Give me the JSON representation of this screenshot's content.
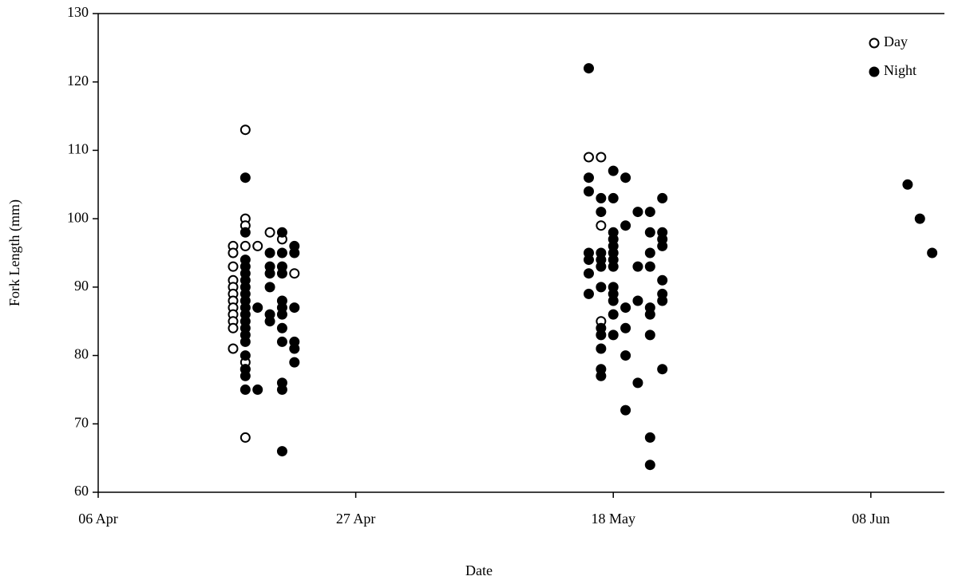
{
  "chart_data": {
    "type": "scatter",
    "x_label": "Date",
    "y_label": "Fork Length (mm)",
    "xlim": [
      "06 Apr",
      "14 Jun"
    ],
    "xticks": [
      "06 Apr",
      "27 Apr",
      "18 May",
      "08 Jun"
    ],
    "ylim": [
      60,
      130
    ],
    "yticks": [
      60,
      70,
      80,
      90,
      100,
      110,
      120,
      130
    ],
    "legend": "top-right",
    "grid": false,
    "series": [
      {
        "name": "Day",
        "color": "#000000",
        "marker": "open",
        "x": [
          "17 Apr",
          "17 Apr",
          "17 Apr",
          "17 Apr",
          "17 Apr",
          "17 Apr",
          "17 Apr",
          "17 Apr",
          "17 Apr",
          "17 Apr",
          "17 Apr",
          "17 Apr",
          "18 Apr",
          "18 Apr",
          "18 Apr",
          "18 Apr",
          "18 Apr",
          "18 Apr",
          "18 Apr",
          "19 Apr",
          "20 Apr",
          "21 Apr",
          "22 Apr",
          "16 May",
          "17 May",
          "17 May",
          "17 May"
        ],
        "y": [
          96,
          95,
          93,
          91,
          90,
          89,
          88,
          87,
          86,
          85,
          84,
          81,
          113,
          100,
          99,
          96,
          79,
          78,
          68,
          96,
          98,
          97,
          92,
          109,
          109,
          99,
          85
        ]
      },
      {
        "name": "Night",
        "color": "#000000",
        "marker": "filled",
        "x": [
          "18 Apr",
          "18 Apr",
          "18 Apr",
          "18 Apr",
          "18 Apr",
          "18 Apr",
          "18 Apr",
          "18 Apr",
          "18 Apr",
          "18 Apr",
          "18 Apr",
          "18 Apr",
          "18 Apr",
          "18 Apr",
          "18 Apr",
          "18 Apr",
          "18 Apr",
          "18 Apr",
          "18 Apr",
          "19 Apr",
          "19 Apr",
          "20 Apr",
          "20 Apr",
          "20 Apr",
          "20 Apr",
          "20 Apr",
          "20 Apr",
          "21 Apr",
          "21 Apr",
          "21 Apr",
          "21 Apr",
          "21 Apr",
          "21 Apr",
          "21 Apr",
          "21 Apr",
          "21 Apr",
          "21 Apr",
          "21 Apr",
          "21 Apr",
          "22 Apr",
          "22 Apr",
          "22 Apr",
          "22 Apr",
          "22 Apr",
          "22 Apr",
          "16 May",
          "16 May",
          "16 May",
          "16 May",
          "16 May",
          "16 May",
          "16 May",
          "17 May",
          "17 May",
          "17 May",
          "17 May",
          "17 May",
          "17 May",
          "17 May",
          "17 May",
          "17 May",
          "17 May",
          "17 May",
          "18 May",
          "18 May",
          "18 May",
          "18 May",
          "18 May",
          "18 May",
          "18 May",
          "18 May",
          "18 May",
          "18 May",
          "18 May",
          "18 May",
          "18 May",
          "19 May",
          "19 May",
          "19 May",
          "19 May",
          "19 May",
          "19 May",
          "20 May",
          "20 May",
          "20 May",
          "20 May",
          "21 May",
          "21 May",
          "21 May",
          "21 May",
          "21 May",
          "21 May",
          "21 May",
          "21 May",
          "21 May",
          "22 May",
          "22 May",
          "22 May",
          "22 May",
          "22 May",
          "22 May",
          "22 May",
          "22 May",
          "11 Jun",
          "12 Jun",
          "13 Jun"
        ],
        "y": [
          106,
          98,
          94,
          93,
          92,
          91,
          90,
          89,
          88,
          87,
          86,
          85,
          84,
          83,
          82,
          80,
          78,
          77,
          75,
          87,
          75,
          95,
          93,
          92,
          90,
          86,
          85,
          98,
          95,
          93,
          92,
          88,
          87,
          86,
          84,
          82,
          76,
          75,
          66,
          96,
          95,
          87,
          82,
          81,
          79,
          122,
          106,
          104,
          95,
          94,
          92,
          89,
          103,
          101,
          95,
          94,
          93,
          90,
          84,
          83,
          81,
          78,
          77,
          107,
          103,
          98,
          97,
          96,
          95,
          94,
          93,
          90,
          89,
          88,
          86,
          83,
          106,
          99,
          87,
          84,
          80,
          72,
          101,
          93,
          88,
          76,
          101,
          98,
          95,
          93,
          87,
          86,
          83,
          68,
          64,
          103,
          98,
          97,
          96,
          91,
          89,
          88,
          78,
          105,
          100,
          95
        ]
      }
    ]
  }
}
